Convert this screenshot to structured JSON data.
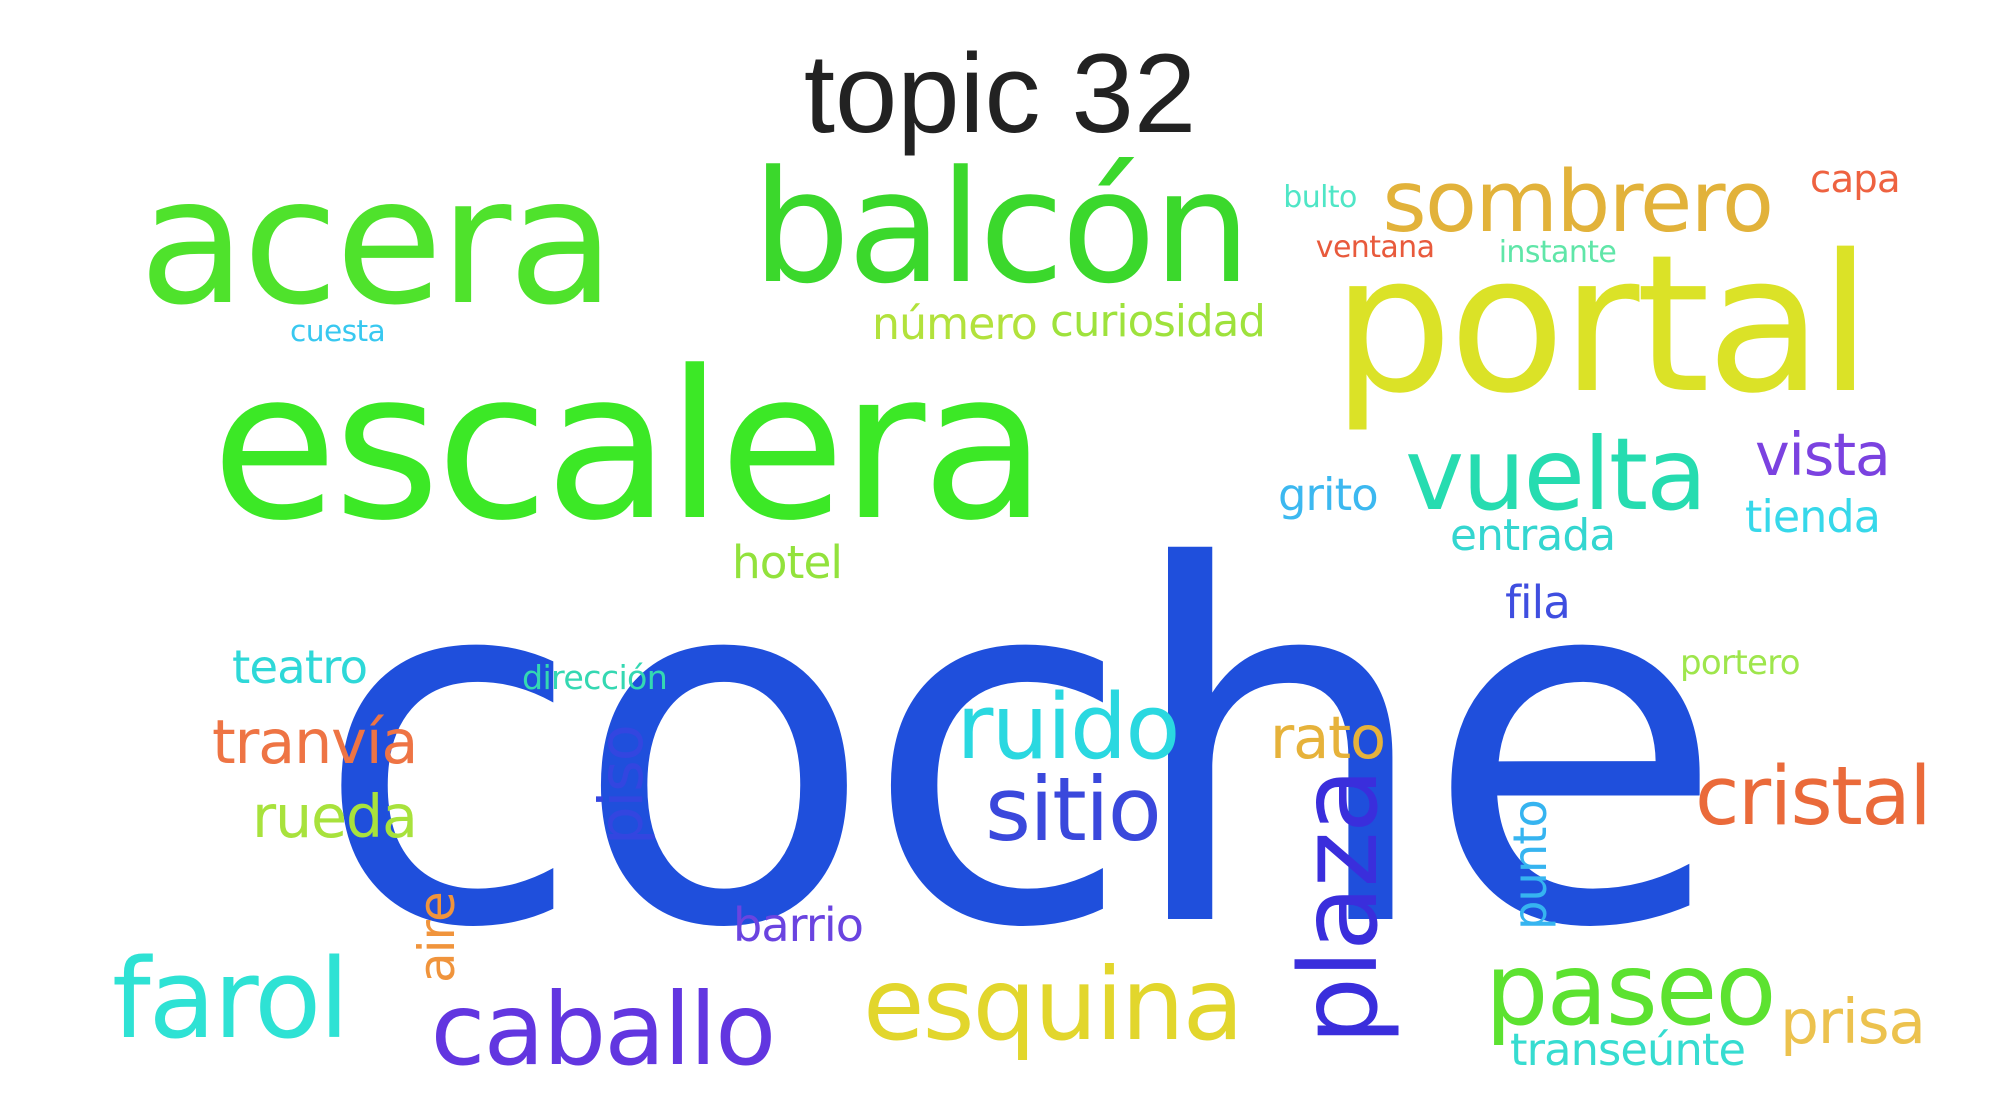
{
  "title": "topic 32",
  "words": [
    {
      "text": "coche",
      "color": "#1f4fdc"
    },
    {
      "text": "escalera",
      "color": "#3ce826"
    },
    {
      "text": "acera",
      "color": "#4fe22c"
    },
    {
      "text": "balcón",
      "color": "#3bd82c"
    },
    {
      "text": "portal",
      "color": "#dbe227"
    },
    {
      "text": "sombrero",
      "color": "#e2b23a"
    },
    {
      "text": "vuelta",
      "color": "#26dcb0"
    },
    {
      "text": "vista",
      "color": "#7b42e0"
    },
    {
      "text": "capa",
      "color": "#ee6240"
    },
    {
      "text": "bulto",
      "color": "#4fe6c6"
    },
    {
      "text": "ventana",
      "color": "#e85a3c"
    },
    {
      "text": "instante",
      "color": "#5fe6a8"
    },
    {
      "text": "número",
      "color": "#b2e23c"
    },
    {
      "text": "curiosidad",
      "color": "#9ee23c"
    },
    {
      "text": "cuesta",
      "color": "#38c8f0"
    },
    {
      "text": "grito",
      "color": "#3cb8f0"
    },
    {
      "text": "tienda",
      "color": "#36d8ea"
    },
    {
      "text": "entrada",
      "color": "#34d6d0"
    },
    {
      "text": "hotel",
      "color": "#92e23c"
    },
    {
      "text": "fila",
      "color": "#3f4ee0"
    },
    {
      "text": "teatro",
      "color": "#2ed8d8"
    },
    {
      "text": "dirección",
      "color": "#34d8b2"
    },
    {
      "text": "portero",
      "color": "#9ee64c"
    },
    {
      "text": "ruido",
      "color": "#2ad8e0"
    },
    {
      "text": "rato",
      "color": "#e6b23a"
    },
    {
      "text": "tranvía",
      "color": "#ee7444"
    },
    {
      "text": "sitio",
      "color": "#3a48dc"
    },
    {
      "text": "cristal",
      "color": "#ea6a3a"
    },
    {
      "text": "rueda",
      "color": "#a8e23c"
    },
    {
      "text": "piso",
      "color": "#3346e0"
    },
    {
      "text": "plaza",
      "color": "#3a2edc"
    },
    {
      "text": "punto",
      "color": "#36b4f0"
    },
    {
      "text": "aire",
      "color": "#f0943c"
    },
    {
      "text": "barrio",
      "color": "#6a44e0"
    },
    {
      "text": "farol",
      "color": "#2ee2d4"
    },
    {
      "text": "caballo",
      "color": "#6236e0"
    },
    {
      "text": "esquina",
      "color": "#e2d62c"
    },
    {
      "text": "paseo",
      "color": "#5ce230"
    },
    {
      "text": "prisa",
      "color": "#ecc24e"
    },
    {
      "text": "transeúnte",
      "color": "#36dcd0"
    }
  ]
}
